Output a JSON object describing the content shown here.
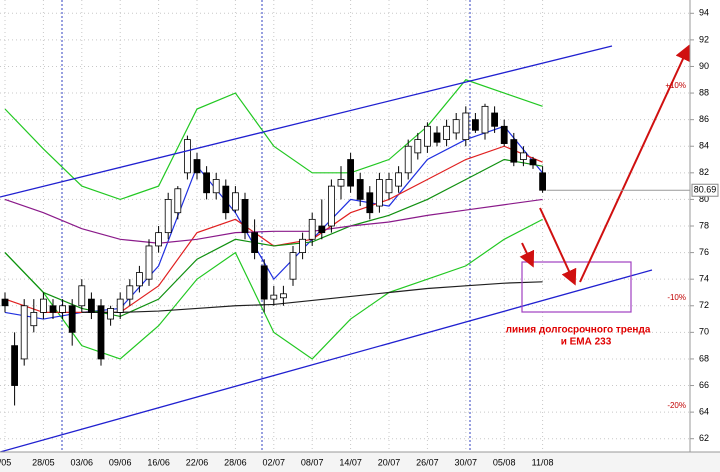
{
  "chart_data": {
    "type": "candlestick",
    "categories": [
      "/05",
      null,
      null,
      null,
      "28/05",
      null,
      null,
      null,
      "03/06",
      null,
      null,
      null,
      "09/06",
      null,
      null,
      null,
      "16/06",
      null,
      null,
      null,
      "22/06",
      null,
      null,
      null,
      "28/06",
      null,
      null,
      null,
      "02/07",
      null,
      null,
      null,
      "08/07",
      null,
      null,
      null,
      "14/07",
      null,
      null,
      null,
      "20/07",
      null,
      null,
      null,
      "26/07",
      null,
      null,
      null,
      "30/07",
      null,
      null,
      null,
      "05/08",
      null,
      null,
      null,
      "11/08"
    ],
    "open": [
      72.5,
      69,
      68,
      70.5,
      71.5,
      72,
      71.5,
      72,
      72,
      72.5,
      72,
      71,
      71.5,
      72.5,
      73.5,
      74,
      76.5,
      77.5,
      79,
      82,
      83,
      82,
      80.5,
      81,
      79.2,
      80,
      77.5,
      75,
      72.5,
      72.6,
      74,
      76,
      77,
      78,
      78,
      81,
      83,
      81.5,
      80.5,
      79.5,
      80.5,
      81,
      82,
      83.5,
      84,
      85,
      84.5,
      85,
      84.5,
      86,
      85,
      86.5,
      85.5,
      84.5,
      83,
      83,
      82
    ],
    "high": [
      73,
      70,
      72.5,
      72.5,
      73,
      72.5,
      72.5,
      72.5,
      74,
      73,
      72.5,
      72,
      73,
      74,
      75,
      77,
      78,
      80.5,
      81,
      84.8,
      83.5,
      82.5,
      82,
      81.5,
      81,
      80.5,
      78.5,
      75.5,
      73.5,
      73.5,
      76.5,
      77.5,
      79,
      80,
      81.5,
      82.5,
      83.5,
      82,
      81,
      82,
      82,
      82.5,
      84.5,
      85,
      85.8,
      85.5,
      86,
      86.5,
      87,
      86.5,
      87.2,
      87,
      86,
      85,
      84,
      83.2,
      82.5
    ],
    "low": [
      71.5,
      64.5,
      67.5,
      70,
      71,
      71,
      71,
      69,
      71.5,
      71,
      67.5,
      70.5,
      71,
      72,
      73,
      73.5,
      76,
      77,
      78.5,
      81.5,
      81.5,
      80,
      80,
      78.5,
      79,
      77,
      75.5,
      71.5,
      72,
      72,
      73.5,
      75.5,
      76.5,
      77,
      77.5,
      80,
      80.5,
      79.5,
      78.5,
      79,
      80,
      80.5,
      81.5,
      83,
      83.5,
      84,
      84,
      84.5,
      84,
      85,
      84.5,
      85,
      84,
      82.5,
      82.5,
      82.3,
      80.5
    ],
    "close": [
      72,
      66,
      72,
      71.5,
      72.5,
      71.5,
      72,
      70,
      73.5,
      71.5,
      68,
      71.8,
      72.5,
      73.5,
      74.5,
      76.5,
      77.5,
      80,
      80.8,
      84.5,
      82,
      80.5,
      81.5,
      79,
      80.5,
      77.5,
      76,
      72.5,
      72.8,
      72.9,
      76,
      77,
      78.5,
      77.5,
      81,
      81.5,
      81,
      80,
      79,
      81.5,
      81.5,
      82,
      84,
      84.5,
      85.5,
      84.3,
      85.5,
      86,
      86.5,
      85.2,
      87,
      85.5,
      84.2,
      82.8,
      83.5,
      82.6,
      80.69
    ],
    "overlays": [
      {
        "color": "#22c822",
        "values": [
          86.8,
          83.8,
          81,
          80,
          81,
          86.8,
          88,
          84,
          82,
          82,
          83,
          85.5,
          89,
          88,
          87
        ]
      },
      {
        "color": "#22c822",
        "values": [
          76,
          73,
          69,
          68,
          70.5,
          74,
          76,
          70,
          68,
          71,
          73,
          74,
          75,
          77,
          78.5
        ]
      },
      {
        "color": "#2030e0",
        "values": [
          71.5,
          71,
          71.5,
          71.8,
          75,
          82.5,
          79,
          74,
          77,
          80,
          79.5,
          83,
          84.5,
          85.5,
          82
        ]
      },
      {
        "color": "#e02020",
        "values": [
          72.5,
          71.5,
          71.5,
          71.5,
          73.5,
          77.5,
          78.5,
          76.5,
          77,
          79,
          80,
          81.5,
          83,
          84,
          82.8
        ]
      },
      {
        "color": "#109010",
        "values": [
          76,
          73,
          71.8,
          71.2,
          72.5,
          75.5,
          77,
          76.5,
          76.8,
          78,
          78.8,
          80,
          81.5,
          83,
          82.5
        ]
      },
      {
        "color": "#8a1a8a",
        "values": [
          80,
          79,
          77.8,
          77,
          76.7,
          77,
          77.5,
          77.6,
          77.6,
          78,
          78.3,
          78.8,
          79.2,
          79.6,
          80
        ]
      },
      {
        "color": "#202020",
        "values": [
          null,
          null,
          71.5,
          71.5,
          71.6,
          71.8,
          72,
          72.1,
          72.4,
          72.7,
          73,
          73.3,
          73.5,
          73.7,
          73.8
        ]
      }
    ],
    "last_price": 80.69,
    "ylim": [
      61,
      95
    ],
    "yticks": [
      62,
      64,
      66,
      68,
      70,
      72,
      74,
      76,
      78,
      80,
      82,
      84,
      86,
      88,
      90,
      92,
      94
    ],
    "grid": true,
    "annotations": [
      "+10%",
      "-10%",
      "-20%"
    ],
    "note": [
      "линия долгосрочного тренда",
      "и ЕМА 233"
    ]
  }
}
